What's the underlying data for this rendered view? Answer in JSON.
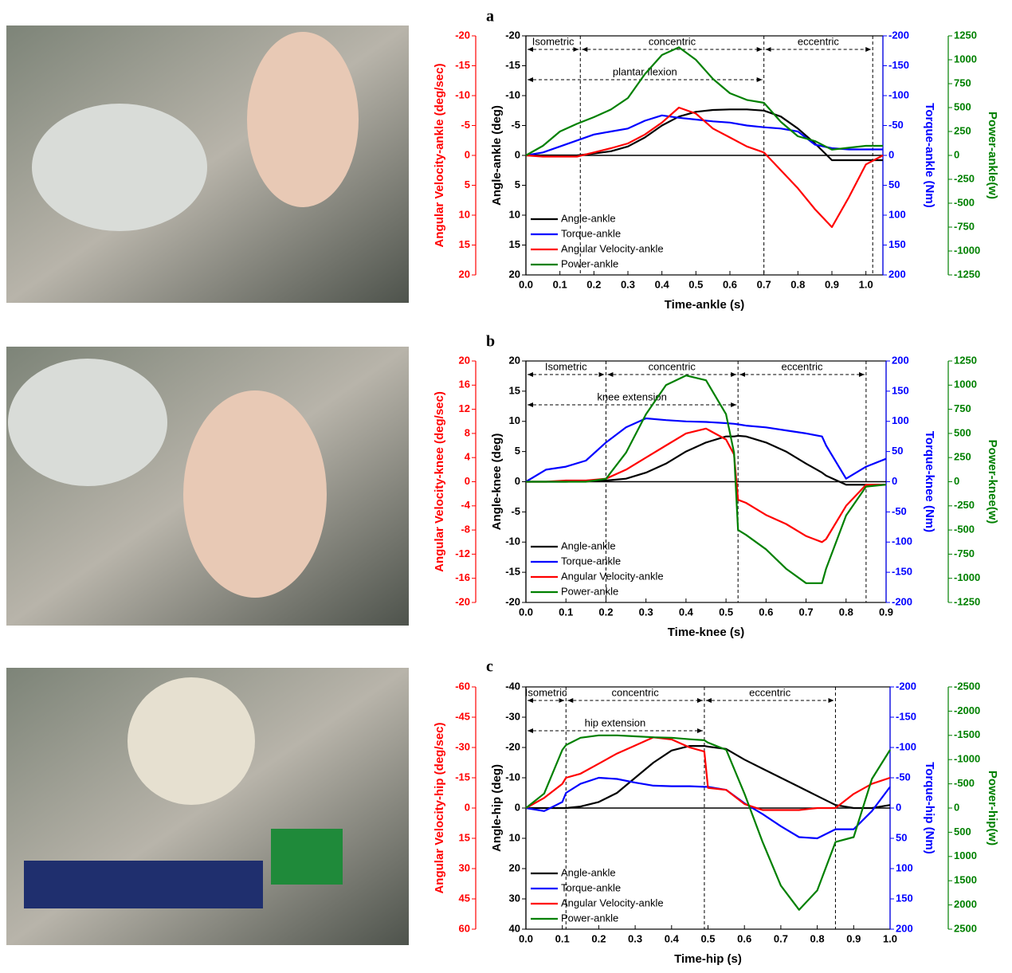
{
  "chart_data": [
    {
      "type": "line",
      "label": "a",
      "xlabel": "Time-ankle (s)",
      "ylabel": "Angle-ankle (deg)",
      "y2label": "Torque-ankle (Nm)",
      "y3label": "Angular Velocity-ankle (deg/sec)",
      "y4label": "Power-ankle(w)",
      "xlim": [
        0,
        1.05
      ],
      "xticks": [
        {
          "value": 0,
          "label": "0.0"
        },
        0.1,
        0.2,
        0.3,
        0.4,
        0.5,
        0.6,
        0.7,
        0.8,
        0.9,
        {
          "value": 1,
          "label": "1.0"
        }
      ],
      "ylim": [
        20,
        -20
      ],
      "yticks": [
        -20,
        -15,
        -10,
        -5,
        0,
        5,
        10,
        15,
        20
      ],
      "y2lim": [
        200,
        -200
      ],
      "y2ticks": [
        -200,
        -150,
        -100,
        -50,
        0,
        50,
        100,
        150,
        200
      ],
      "y3lim": [
        20,
        -20
      ],
      "y3ticks": [
        -20,
        -15,
        -10,
        -5,
        0,
        5,
        10,
        15,
        20
      ],
      "y4lim": [
        -1250,
        1250
      ],
      "y4ticks": [
        -1250,
        -1000,
        -750,
        -500,
        -250,
        0,
        250,
        500,
        750,
        1000,
        1250
      ],
      "phases": [
        {
          "label": "Isometric",
          "start": 0,
          "end": 0.16
        },
        {
          "label": "concentric",
          "start": 0.16,
          "end": 0.7
        },
        {
          "label": "eccentric",
          "start": 0.7,
          "end": 1.02
        }
      ],
      "motion": {
        "label": "plantar flexion",
        "start": 0,
        "end": 0.7
      },
      "x": [
        0,
        0.05,
        0.1,
        0.15,
        0.2,
        0.25,
        0.3,
        0.35,
        0.4,
        0.45,
        0.5,
        0.55,
        0.6,
        0.65,
        0.7,
        0.75,
        0.8,
        0.85,
        0.9,
        0.95,
        1.0,
        1.05
      ],
      "series": [
        {
          "name": "Angle-ankle",
          "color": "#000000",
          "axis": "y",
          "values": [
            0,
            0,
            0,
            0,
            -0.3,
            -0.7,
            -1.5,
            -3,
            -5,
            -6.5,
            -7.3,
            -7.6,
            -7.7,
            -7.7,
            -7.5,
            -6.5,
            -4.5,
            -2,
            0.8,
            0.8,
            0.8,
            0.8
          ]
        },
        {
          "name": "Torque-ankle",
          "color": "#0000ff",
          "axis": "y2",
          "values": [
            0,
            -5,
            -15,
            -25,
            -35,
            -40,
            -45,
            -58,
            -67,
            -63,
            -60,
            -57,
            -55,
            -50,
            -47,
            -45,
            -40,
            -18,
            -12,
            -10,
            -10,
            -10
          ]
        },
        {
          "name": "Angular Velocity-ankle",
          "color": "#ff0000",
          "axis": "y3",
          "values": [
            0,
            0.2,
            0.2,
            0.2,
            -0.5,
            -1.2,
            -2,
            -3.5,
            -5.5,
            -8,
            -7,
            -4.5,
            -3,
            -1.5,
            -0.5,
            2.5,
            5.5,
            9,
            12,
            7,
            1.5,
            0
          ]
        },
        {
          "name": "Power-ankle",
          "color": "#008000",
          "axis": "y4",
          "values": [
            0,
            100,
            250,
            330,
            400,
            480,
            600,
            850,
            1050,
            1130,
            1000,
            800,
            650,
            580,
            550,
            350,
            200,
            150,
            60,
            80,
            100,
            100
          ]
        }
      ]
    },
    {
      "type": "line",
      "label": "b",
      "xlabel": "Time-knee (s)",
      "ylabel": "Angle-knee (deg)",
      "y2label": "Torque-knee (Nm)",
      "y3label": "Angular Velocity-knee (deg/sec)",
      "y4label": "Power-knee(w)",
      "xlim": [
        0,
        0.9
      ],
      "xticks": [
        {
          "value": 0,
          "label": "0.0"
        },
        0.1,
        0.2,
        0.3,
        0.4,
        0.5,
        0.6,
        0.7,
        0.8,
        0.9
      ],
      "ylim": [
        -20,
        20
      ],
      "yticks": [
        -20,
        -15,
        -10,
        -5,
        0,
        5,
        10,
        15,
        20
      ],
      "y2lim": [
        -200,
        200
      ],
      "y2ticks": [
        -200,
        -150,
        -100,
        -50,
        0,
        50,
        100,
        150,
        200
      ],
      "y3lim": [
        -20,
        20
      ],
      "y3ticks": [
        -20,
        -16,
        -12,
        -8,
        -4,
        0,
        4,
        8,
        12,
        16,
        20
      ],
      "y4lim": [
        -1250,
        1250
      ],
      "y4ticks": [
        -1250,
        -1000,
        -750,
        -500,
        -250,
        0,
        250,
        500,
        750,
        1000,
        1250
      ],
      "phases": [
        {
          "label": "Isometric",
          "start": 0,
          "end": 0.2
        },
        {
          "label": "concentric",
          "start": 0.2,
          "end": 0.53
        },
        {
          "label": "eccentric",
          "start": 0.53,
          "end": 0.85
        }
      ],
      "motion": {
        "label": "knee extension",
        "start": 0,
        "end": 0.53
      },
      "x": [
        0,
        0.05,
        0.1,
        0.15,
        0.2,
        0.25,
        0.3,
        0.35,
        0.4,
        0.45,
        0.5,
        0.52,
        0.53,
        0.55,
        0.6,
        0.65,
        0.7,
        0.74,
        0.75,
        0.8,
        0.85,
        0.9
      ],
      "series": [
        {
          "name": "Angle-ankle",
          "color": "#000000",
          "axis": "y",
          "values": [
            0,
            0,
            0,
            0.1,
            0.2,
            0.5,
            1.5,
            3,
            5,
            6.5,
            7.5,
            7.5,
            7.6,
            7.5,
            6.5,
            5,
            3,
            1.5,
            1,
            -0.5,
            -0.5,
            -0.5
          ]
        },
        {
          "name": "Torque-ankle",
          "color": "#0000ff",
          "axis": "y2",
          "values": [
            0,
            20,
            25,
            35,
            65,
            90,
            105,
            102,
            100,
            99,
            97,
            96,
            95,
            93,
            90,
            85,
            80,
            75,
            60,
            5,
            25,
            38
          ]
        },
        {
          "name": "Angular Velocity-ankle",
          "color": "#ff0000",
          "axis": "y3",
          "values": [
            0,
            0,
            0.2,
            0.2,
            0.5,
            2,
            4,
            6,
            8,
            8.8,
            7,
            4.5,
            -3,
            -3.5,
            -5.5,
            -7,
            -9,
            -10,
            -9.5,
            -4,
            -0.5,
            -0.5
          ]
        },
        {
          "name": "Power-ankle",
          "color": "#008000",
          "axis": "y4",
          "values": [
            0,
            0,
            0,
            0,
            30,
            300,
            700,
            1000,
            1100,
            1050,
            700,
            300,
            -500,
            -550,
            -700,
            -900,
            -1050,
            -1050,
            -900,
            -350,
            -50,
            -30
          ]
        }
      ]
    },
    {
      "type": "line",
      "label": "c",
      "xlabel": "Time-hip (s)",
      "ylabel": "Angle-hip (deg)",
      "y2label": "Torque-hip (Nm)",
      "y3label": "Angular Velocity-hip (deg/sec)",
      "y4label": "Power-hip(w)",
      "xlim": [
        0,
        1.0
      ],
      "xticks": [
        {
          "value": 0,
          "label": "0.0"
        },
        0.1,
        0.2,
        0.3,
        0.4,
        0.5,
        0.6,
        0.7,
        0.8,
        0.9,
        {
          "value": 1,
          "label": "1.0"
        }
      ],
      "ylim": [
        40,
        -40
      ],
      "yticks": [
        -40,
        -30,
        -20,
        -10,
        0,
        10,
        20,
        30,
        40
      ],
      "y2lim": [
        200,
        -200
      ],
      "y2ticks": [
        -200,
        -150,
        -100,
        -50,
        0,
        50,
        100,
        150,
        200
      ],
      "y3lim": [
        60,
        -60
      ],
      "y3ticks": [
        -60,
        -45,
        -30,
        -15,
        0,
        15,
        30,
        45,
        60
      ],
      "y4lim": [
        2500,
        -2500
      ],
      "y4ticks": [
        -2500,
        -2000,
        -1500,
        -1000,
        -500,
        0,
        500,
        1000,
        1500,
        2000,
        2500
      ],
      "phases": [
        {
          "label": "Isometric",
          "start": 0,
          "end": 0.11
        },
        {
          "label": "concentric",
          "start": 0.11,
          "end": 0.49
        },
        {
          "label": "eccentric",
          "start": 0.49,
          "end": 0.85
        }
      ],
      "motion": {
        "label": "hip extension",
        "start": 0,
        "end": 0.49
      },
      "x": [
        0,
        0.05,
        0.1,
        0.11,
        0.15,
        0.2,
        0.25,
        0.3,
        0.35,
        0.4,
        0.45,
        0.49,
        0.5,
        0.55,
        0.6,
        0.65,
        0.7,
        0.75,
        0.8,
        0.85,
        0.9,
        0.95,
        1.0
      ],
      "series": [
        {
          "name": "Angle-ankle",
          "color": "#000000",
          "axis": "y",
          "values": [
            0,
            0,
            0,
            0,
            -0.5,
            -2,
            -5,
            -10,
            -15,
            -19,
            -20.5,
            -20.5,
            -20.3,
            -19.5,
            -16,
            -13,
            -10,
            -7,
            -4,
            -1,
            0,
            0,
            -1
          ]
        },
        {
          "name": "Torque-ankle",
          "color": "#0000ff",
          "axis": "y2",
          "values": [
            0,
            5,
            -10,
            -25,
            -40,
            -50,
            -48,
            -42,
            -37,
            -36,
            -36,
            -35,
            -35,
            -30,
            -8,
            10,
            30,
            48,
            50,
            35,
            35,
            5,
            -35
          ]
        },
        {
          "name": "Angular Velocity-ankle",
          "color": "#ff0000",
          "axis": "y3",
          "values": [
            0,
            -5,
            -12,
            -15,
            -17,
            -22,
            -27,
            -31,
            -35,
            -34,
            -30,
            -28,
            -10,
            -9,
            -2,
            1,
            1,
            1,
            0,
            0,
            -7,
            -12,
            -15
          ]
        },
        {
          "name": "Power-ankle",
          "color": "#008000",
          "axis": "y4",
          "values": [
            0,
            -300,
            -1200,
            -1300,
            -1450,
            -1500,
            -1500,
            -1480,
            -1460,
            -1450,
            -1420,
            -1400,
            -1350,
            -1200,
            -300,
            700,
            1600,
            2100,
            1700,
            700,
            600,
            -600,
            -1200
          ]
        }
      ]
    }
  ]
}
